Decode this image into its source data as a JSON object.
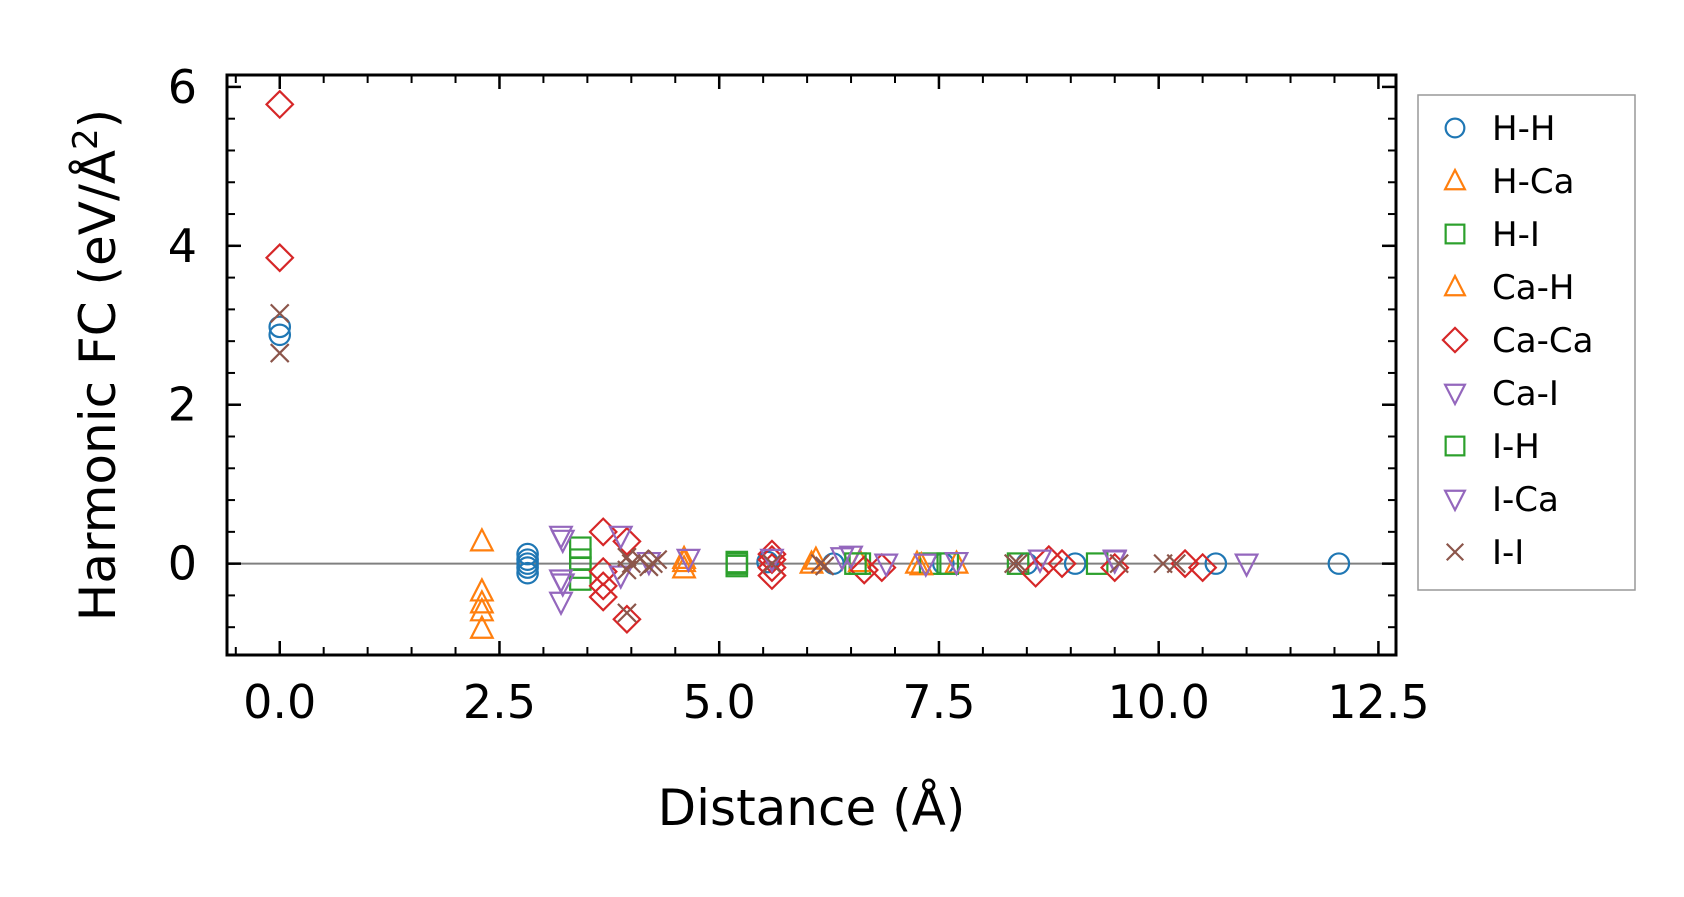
{
  "chart_data": {
    "type": "scatter",
    "title": "",
    "xlabel": "Distance (Å)",
    "ylabel_main": "Harmonic FC (eV/Å",
    "ylabel_sup": "2",
    "ylabel_close": ")",
    "xlim": [
      -0.6,
      12.7
    ],
    "ylim": [
      -1.15,
      6.15
    ],
    "xticks": [
      {
        "value": 0.0,
        "label": "0.0"
      },
      {
        "value": 2.5,
        "label": "2.5"
      },
      {
        "value": 5.0,
        "label": "5.0"
      },
      {
        "value": 7.5,
        "label": "7.5"
      },
      {
        "value": 10.0,
        "label": "10.0"
      },
      {
        "value": 12.5,
        "label": "12.5"
      }
    ],
    "yticks": [
      {
        "value": 0,
        "label": "0"
      },
      {
        "value": 2,
        "label": "2"
      },
      {
        "value": 4,
        "label": "4"
      },
      {
        "value": 6,
        "label": "6"
      }
    ],
    "x_minor_step": 0.5,
    "y_minor_step": 0.4,
    "zero_line": true,
    "grid": false,
    "legend_position": "outside-right",
    "series": [
      {
        "name": "H-H",
        "marker": "circle",
        "color": "#1f77b4",
        "points": [
          [
            0,
            2.98
          ],
          [
            0,
            2.88
          ],
          [
            2.82,
            0.12
          ],
          [
            2.82,
            0.05
          ],
          [
            2.82,
            0
          ],
          [
            2.82,
            -0.05
          ],
          [
            2.82,
            -0.12
          ],
          [
            5.55,
            0.02
          ],
          [
            6.3,
            0
          ],
          [
            7.55,
            0
          ],
          [
            8.5,
            0
          ],
          [
            9.05,
            0
          ],
          [
            10.65,
            0
          ],
          [
            12.05,
            0
          ]
        ]
      },
      {
        "name": "H-Ca",
        "marker": "triangle-up",
        "color": "#ff7f0e",
        "points": [
          [
            2.3,
            0.28
          ],
          [
            2.3,
            -0.35
          ],
          [
            2.3,
            -0.5
          ],
          [
            2.3,
            -0.6
          ],
          [
            2.3,
            -0.82
          ],
          [
            4.6,
            0.02
          ],
          [
            4.6,
            -0.06
          ],
          [
            6.1,
            0.05
          ],
          [
            7.25,
            0
          ],
          [
            7.7,
            0
          ]
        ]
      },
      {
        "name": "H-I",
        "marker": "square",
        "color": "#2ca02c",
        "points": [
          [
            3.42,
            0.2
          ],
          [
            3.42,
            0.05
          ],
          [
            3.42,
            -0.05
          ],
          [
            3.42,
            -0.2
          ],
          [
            5.2,
            0.02
          ],
          [
            5.2,
            -0.03
          ],
          [
            6.6,
            0
          ],
          [
            7.4,
            0
          ],
          [
            8.4,
            0
          ],
          [
            9.3,
            0
          ]
        ]
      },
      {
        "name": "Ca-H",
        "marker": "triangle-up",
        "color": "#ff7f0e",
        "points": [
          [
            4.6,
            0.06
          ],
          [
            6.05,
            0
          ],
          [
            6.6,
            0.02
          ],
          [
            7.3,
            -0.02
          ]
        ]
      },
      {
        "name": "Ca-Ca",
        "marker": "diamond",
        "color": "#d62728",
        "points": [
          [
            0,
            5.78
          ],
          [
            0,
            3.85
          ],
          [
            3.68,
            0.4
          ],
          [
            3.68,
            -0.1
          ],
          [
            3.68,
            -0.28
          ],
          [
            3.68,
            -0.42
          ],
          [
            3.95,
            0.28
          ],
          [
            3.95,
            -0.7
          ],
          [
            5.6,
            0.12
          ],
          [
            5.6,
            0.05
          ],
          [
            5.6,
            -0.05
          ],
          [
            5.6,
            -0.15
          ],
          [
            6.65,
            -0.08
          ],
          [
            6.85,
            -0.05
          ],
          [
            8.6,
            -0.12
          ],
          [
            8.75,
            0.05
          ],
          [
            8.9,
            0
          ],
          [
            9.5,
            -0.05
          ],
          [
            10.3,
            0
          ],
          [
            10.5,
            -0.05
          ]
        ]
      },
      {
        "name": "Ca-I",
        "marker": "triangle-down",
        "color": "#9467bd",
        "points": [
          [
            3.2,
            0.35
          ],
          [
            3.2,
            -0.2
          ],
          [
            3.2,
            -0.48
          ],
          [
            3.88,
            0.35
          ],
          [
            3.88,
            -0.15
          ],
          [
            4.65,
            0.06
          ],
          [
            5.6,
            0.06
          ],
          [
            6.5,
            0.1
          ],
          [
            6.9,
            0
          ],
          [
            7.35,
            0
          ],
          [
            8.65,
            0.05
          ],
          [
            9.5,
            0.05
          ],
          [
            11.0,
            0
          ]
        ]
      },
      {
        "name": "I-H",
        "marker": "square",
        "color": "#2ca02c",
        "points": [
          [
            5.2,
            0
          ],
          [
            6.55,
            0
          ],
          [
            7.6,
            0
          ]
        ]
      },
      {
        "name": "I-Ca",
        "marker": "triangle-down",
        "color": "#9467bd",
        "points": [
          [
            3.22,
            0.3
          ],
          [
            3.22,
            -0.25
          ],
          [
            4.2,
            0.02
          ],
          [
            6.4,
            0.08
          ],
          [
            7.7,
            0.02
          ],
          [
            9.5,
            0.04
          ]
        ]
      },
      {
        "name": "I-I",
        "marker": "x",
        "color": "#8c564b",
        "points": [
          [
            0,
            3.15
          ],
          [
            0,
            2.65
          ],
          [
            3.95,
            0.08
          ],
          [
            3.95,
            -0.08
          ],
          [
            3.95,
            -0.62
          ],
          [
            4.0,
            0
          ],
          [
            4.1,
            0.06
          ],
          [
            4.2,
            -0.04
          ],
          [
            4.25,
            0
          ],
          [
            4.3,
            0.05
          ],
          [
            5.6,
            0
          ],
          [
            6.15,
            0
          ],
          [
            6.2,
            -0.03
          ],
          [
            8.35,
            0
          ],
          [
            8.4,
            0
          ],
          [
            9.55,
            0
          ],
          [
            10.05,
            0
          ],
          [
            10.2,
            0
          ]
        ]
      }
    ]
  }
}
